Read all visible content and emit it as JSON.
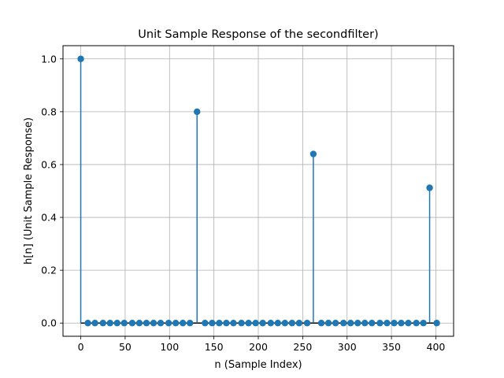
{
  "chart_data": {
    "type": "stem",
    "title": "Unit Sample Response of the secondfilter)",
    "xlabel": "n (Sample Index)",
    "ylabel": "h[n] (Unit Sample Response)",
    "xlim": [
      -20,
      420
    ],
    "ylim": [
      -0.05,
      1.05
    ],
    "xticks": [
      0,
      50,
      100,
      150,
      200,
      250,
      300,
      350,
      400
    ],
    "yticks": [
      0.0,
      0.2,
      0.4,
      0.6,
      0.8,
      1.0
    ],
    "xtick_labels": [
      "0",
      "50",
      "100",
      "150",
      "200",
      "250",
      "300",
      "350",
      "400"
    ],
    "ytick_labels": [
      "0.0",
      "0.2",
      "0.4",
      "0.6",
      "0.8",
      "1.0"
    ],
    "grid": true,
    "colors": {
      "stem": "#1f77b4",
      "baseline": "#000000",
      "grid": "#b0b0b0"
    },
    "x": [
      0,
      8,
      16,
      25,
      33,
      41,
      49,
      58,
      66,
      74,
      82,
      90,
      99,
      107,
      115,
      123,
      131,
      140,
      148,
      156,
      164,
      172,
      181,
      189,
      197,
      205,
      214,
      222,
      230,
      238,
      246,
      255,
      262,
      271,
      279,
      287,
      296,
      304,
      312,
      320,
      328,
      337,
      345,
      353,
      361,
      369,
      378,
      386,
      393,
      401
    ],
    "y": [
      1.0,
      0,
      0,
      0,
      0,
      0,
      0,
      0,
      0,
      0,
      0,
      0,
      0,
      0,
      0,
      0,
      0.8,
      0,
      0,
      0,
      0,
      0,
      0,
      0,
      0,
      0,
      0,
      0,
      0,
      0,
      0,
      0,
      0.64,
      0,
      0,
      0,
      0,
      0,
      0,
      0,
      0,
      0,
      0,
      0,
      0,
      0,
      0,
      0,
      0.512,
      0
    ]
  }
}
